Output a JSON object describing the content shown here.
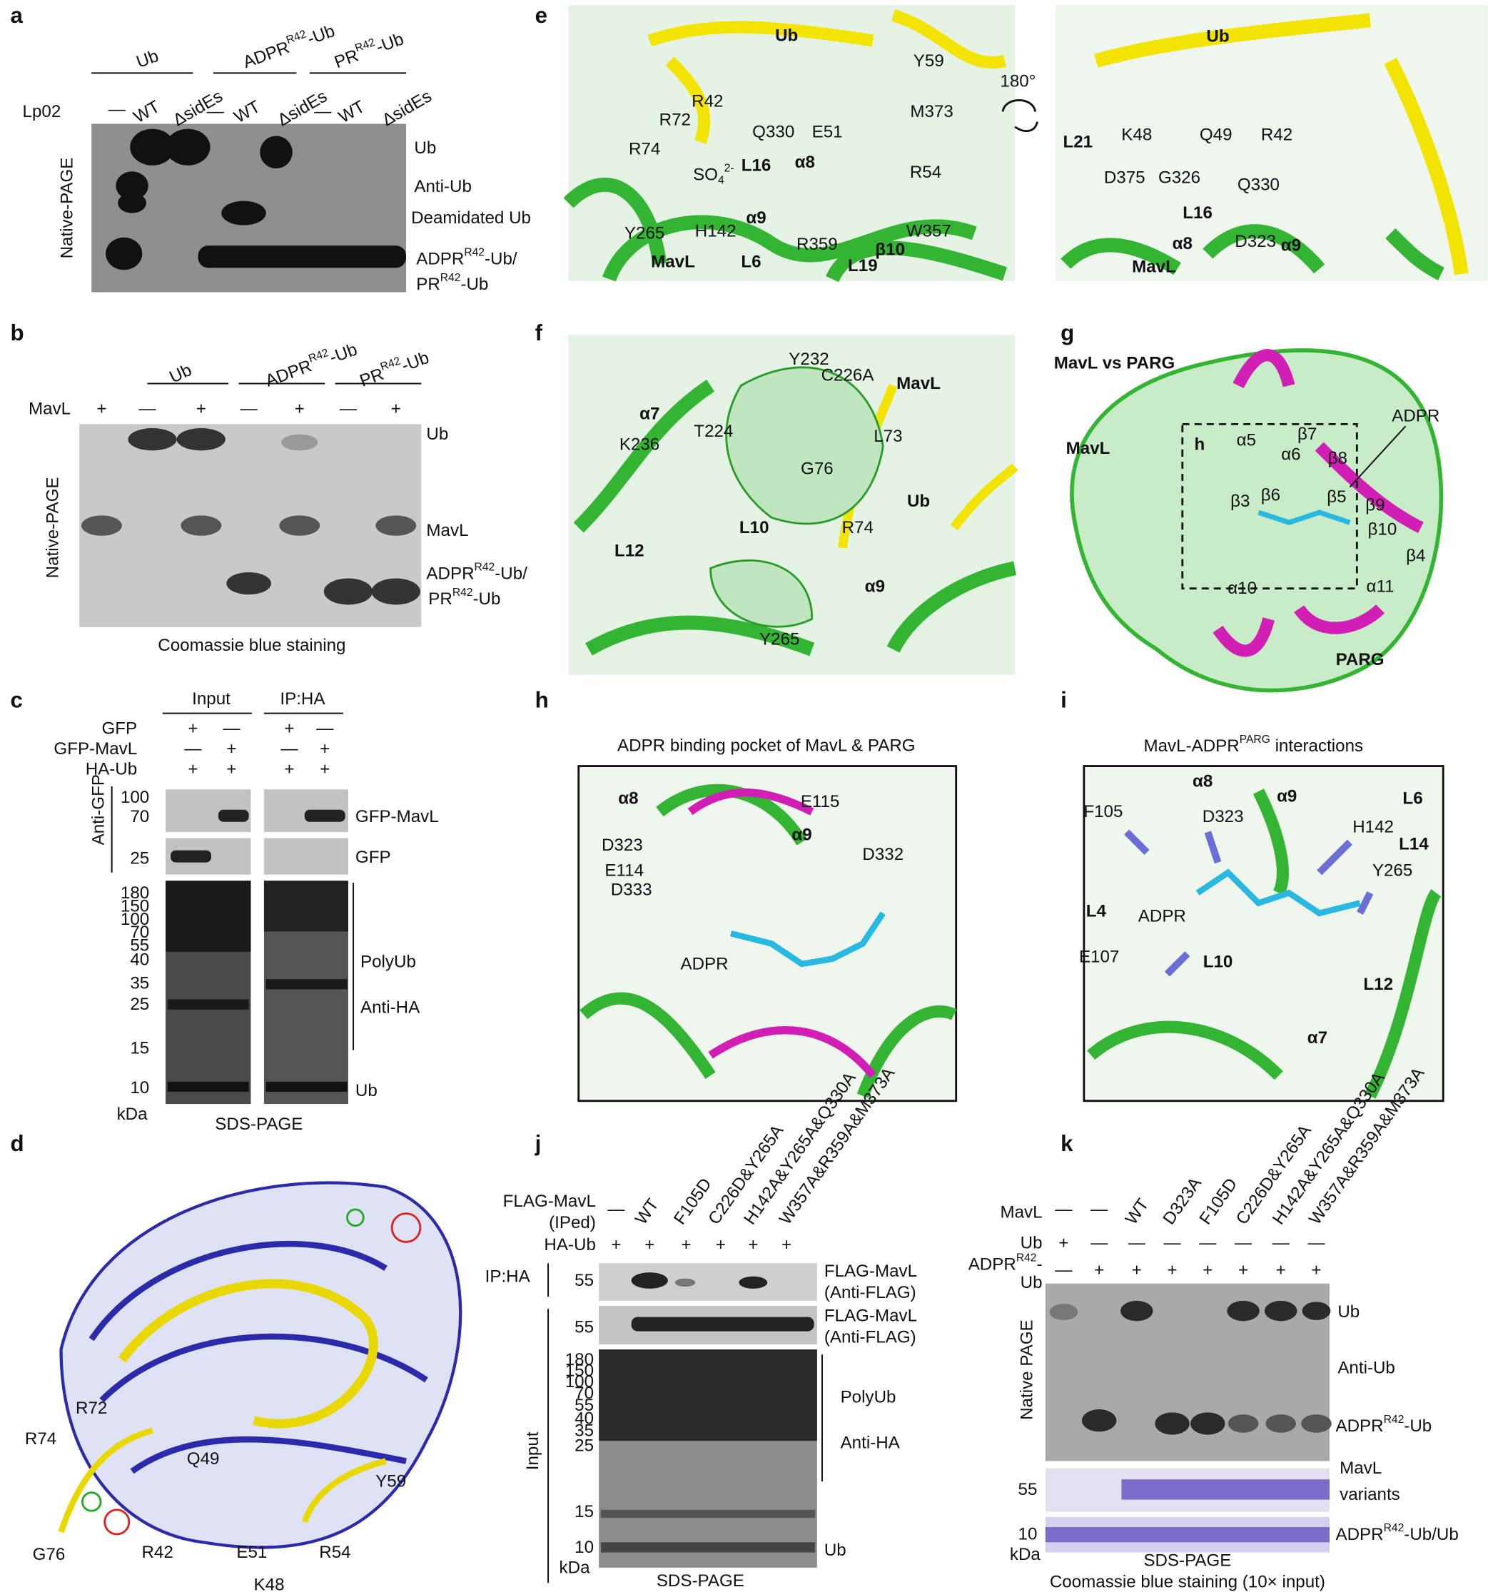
{
  "figure": {
    "panels": {
      "a": {
        "letter": "a",
        "texts": [
          "Ub",
          {
            "parts": [
              {
                "text": "ADPR"
              },
              {
                "text": "R42",
                "sup": true
              },
              {
                "text": "-Ub"
              }
            ]
          },
          {
            "parts": [
              {
                "text": "PR"
              },
              {
                "text": "R42",
                "sup": true
              },
              {
                "text": "-Ub"
              }
            ]
          },
          "Lp02",
          "—",
          "WT",
          "ΔsidEs",
          "—",
          "WT",
          "ΔsidEs",
          "—",
          "WT",
          "ΔsidEs",
          "Ub",
          "Anti-Ub",
          "Deamidated Ub",
          {
            "parts": [
              {
                "text": "ADPR"
              },
              {
                "text": "R42",
                "sup": true
              },
              {
                "text": "-Ub/"
              }
            ]
          },
          {
            "parts": [
              {
                "text": "PR"
              },
              {
                "text": "R42",
                "sup": true
              },
              {
                "text": "-Ub"
              }
            ]
          },
          "Native-PAGE"
        ]
      },
      "b": {
        "letter": "b",
        "texts": [
          "Ub",
          {
            "parts": [
              {
                "text": "ADPR"
              },
              {
                "text": "R42",
                "sup": true
              },
              {
                "text": "-Ub"
              }
            ]
          },
          {
            "parts": [
              {
                "text": "PR"
              },
              {
                "text": "R42",
                "sup": true
              },
              {
                "text": "-Ub"
              }
            ]
          },
          "MavL",
          "+",
          "—",
          "+",
          "—",
          "+",
          "—",
          "+",
          "Ub",
          "MavL",
          {
            "parts": [
              {
                "text": "ADPR"
              },
              {
                "text": "R42",
                "sup": true
              },
              {
                "text": "-Ub/"
              }
            ]
          },
          {
            "parts": [
              {
                "text": "PR"
              },
              {
                "text": "R42",
                "sup": true
              },
              {
                "text": "-Ub"
              }
            ]
          },
          "Native-PAGE",
          "Coomassie blue staining"
        ]
      },
      "c": {
        "letter": "c",
        "texts": [
          "Input",
          "IP:HA",
          "GFP",
          "GFP-MavL",
          "HA-Ub",
          "+",
          "—",
          "+",
          "—",
          "—",
          "+",
          "—",
          "+",
          "+",
          "+",
          "+",
          "+",
          "Anti-GFP",
          "100",
          "70",
          "25",
          "180",
          "150",
          "100",
          "70",
          "55",
          "40",
          "35",
          "25",
          "15",
          "10",
          "GFP-MavL",
          "GFP",
          "PolyUb",
          "Anti-HA",
          "Ub",
          "kDa",
          "SDS-PAGE"
        ]
      },
      "d": {
        "letter": "d",
        "texts": [
          "R72",
          "R74",
          "G76",
          "R42",
          "Q49",
          "E51",
          "K48",
          "R54",
          "Y59"
        ]
      },
      "e": {
        "letter": "e",
        "texts": [
          "Ub",
          "R42",
          "R72",
          "Y59",
          "Q330",
          "E51",
          "M373",
          "R74",
          {
            "parts": [
              {
                "text": "SO"
              },
              {
                "text": "4",
                "sub": true
              },
              {
                "text": "2-",
                "sup": true
              }
            ]
          },
          "L16",
          "α8",
          "R54",
          "Y265",
          "H142",
          "α9",
          "R359",
          "W357",
          "β10",
          "MavL",
          "L6",
          "L19",
          "180°",
          "Ub",
          "K48",
          "Q49",
          "R42",
          "L21",
          "D375",
          "G326",
          "L16",
          "Q330",
          "D323",
          "α8",
          "α9",
          "MavL"
        ]
      },
      "f": {
        "letter": "f",
        "texts": [
          "Y232",
          "C226A",
          "MavL",
          "α7",
          "K236",
          "T224",
          "L73",
          "G76",
          "Ub",
          "L12",
          "L10",
          "R74",
          "α9",
          "Y265"
        ]
      },
      "g": {
        "letter": "g",
        "texts": [
          "MavL vs PARG",
          "ADPR",
          "MavL",
          "h",
          "α5",
          "α6",
          "β7",
          "β8",
          "β3",
          "β6",
          "β5",
          "β9",
          "β10",
          "β4",
          "α11",
          "α10",
          "PARG"
        ]
      },
      "h": {
        "letter": "h",
        "texts": [
          "ADPR binding pocket of MavL & PARG",
          "α8",
          "E115",
          "D323",
          "α9",
          "D332",
          "E114",
          "D333",
          "ADPR"
        ]
      },
      "i": {
        "letter": "i",
        "texts": [
          {
            "parts": [
              {
                "text": "MavL-ADPR"
              },
              {
                "text": "PARG",
                "sup": true
              },
              {
                "text": " interactions"
              }
            ]
          },
          "α8",
          "α9",
          "L6",
          "F105",
          "D323",
          "H142",
          "L14",
          "Y265",
          "L4",
          "ADPR",
          "E107",
          "L10",
          "L12",
          "α7"
        ]
      },
      "j": {
        "letter": "j",
        "texts": [
          "FLAG-MavL",
          "(IPed)",
          "HA-Ub",
          "—",
          "WT",
          "F105D",
          "C226D&Y265A",
          "H142A&Y265A&Q330A",
          "W357A&R359A&M373A",
          "+",
          "+",
          "+",
          "+",
          "+",
          "+",
          "IP:HA",
          "55",
          "55",
          "180",
          "150",
          "100",
          "70",
          "55",
          "40",
          "35",
          "25",
          "15",
          "10",
          "FLAG-MavL",
          "(Anti-FLAG)",
          "FLAG-MavL",
          "(Anti-FLAG)",
          "PolyUb",
          "Anti-HA",
          "Ub",
          "Input",
          "kDa",
          "SDS-PAGE"
        ]
      },
      "k": {
        "letter": "k",
        "texts": [
          "MavL",
          "—",
          "—",
          "WT",
          "D323A",
          "F105D",
          "C226D&Y265A",
          "H142A&Y265A&Q330A",
          "W357A&R359A&M373A",
          "Ub",
          "+",
          "—",
          "—",
          "—",
          "—",
          "—",
          "—",
          "—",
          {
            "parts": [
              {
                "text": "ADPR"
              },
              {
                "text": "R42",
                "sup": true
              },
              {
                "text": "-"
              }
            ]
          },
          "Ub",
          "—",
          "+",
          "+",
          "+",
          "+",
          "+",
          "+",
          "+",
          "Native PAGE",
          "Ub",
          "Anti-Ub",
          {
            "parts": [
              {
                "text": "ADPR"
              },
              {
                "text": "R42",
                "sup": true
              },
              {
                "text": "-Ub"
              }
            ]
          },
          "55",
          "MavL",
          "variants",
          "10",
          {
            "parts": [
              {
                "text": "ADPR"
              },
              {
                "text": "R42",
                "sup": true
              },
              {
                "text": "-Ub/Ub"
              }
            ]
          },
          "kDa",
          "SDS-PAGE",
          "Coomassie blue staining (10× input)"
        ]
      }
    }
  }
}
